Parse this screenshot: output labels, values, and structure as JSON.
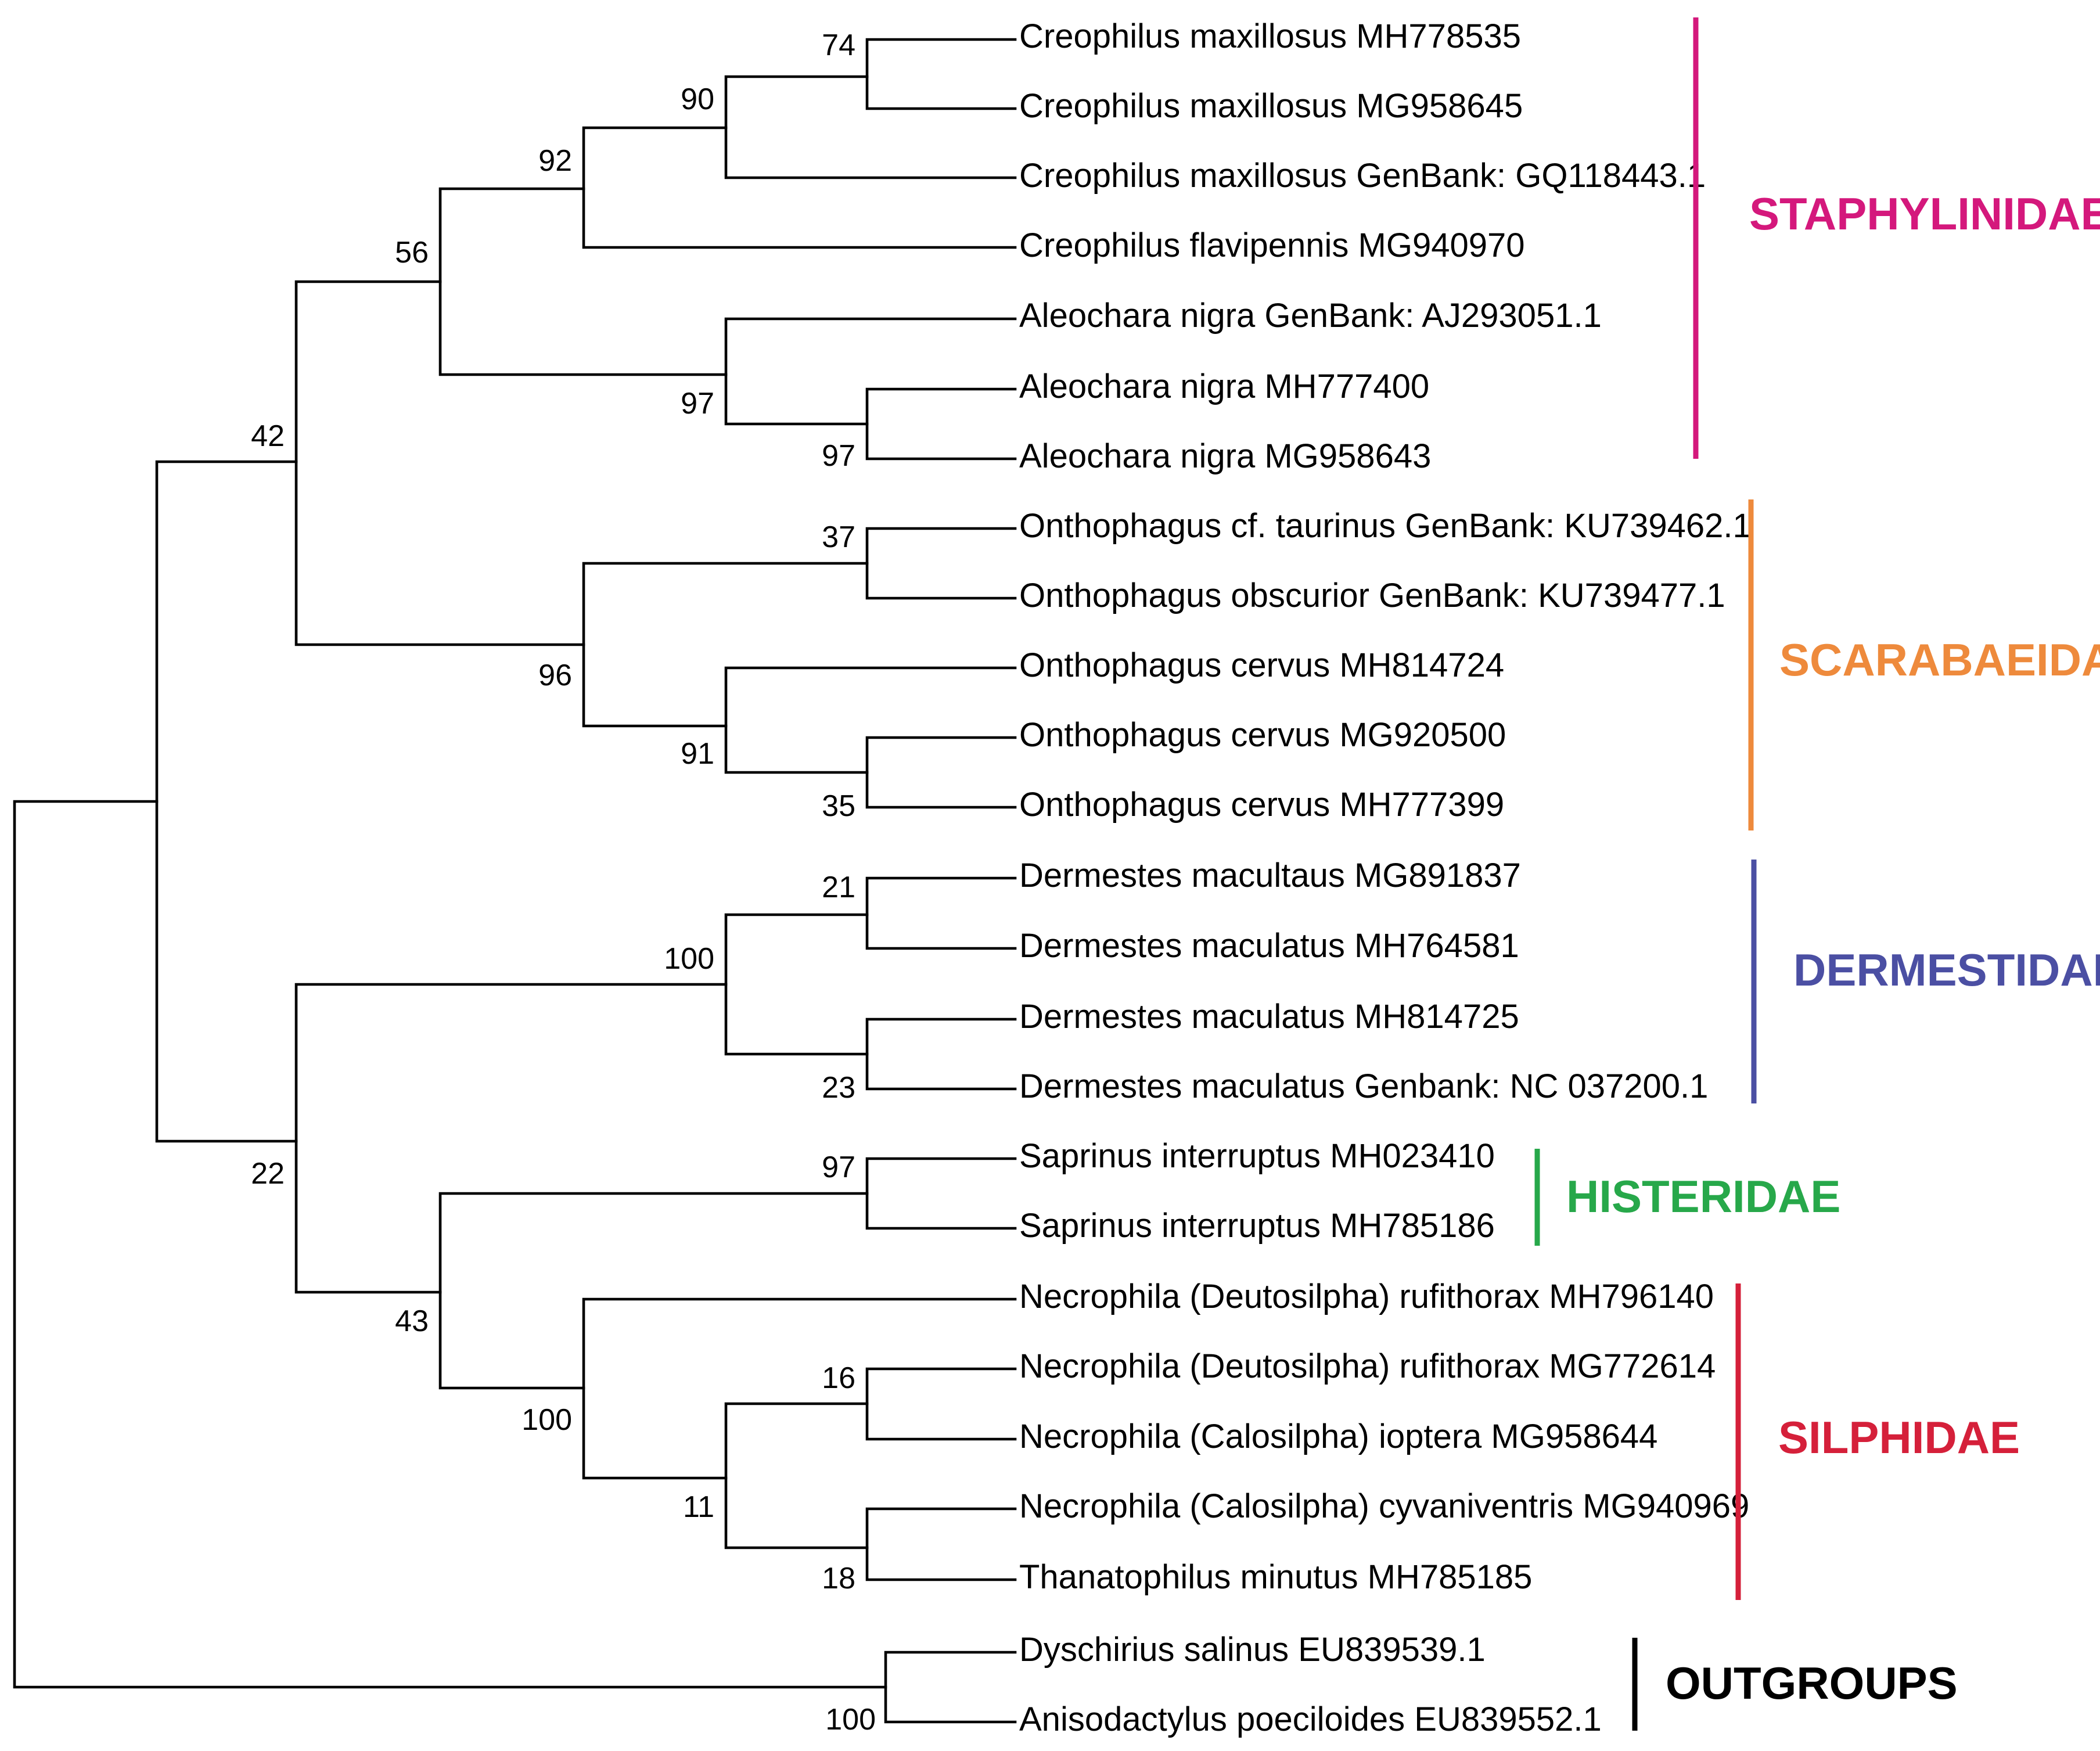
{
  "taxa": [
    "Creophilus maxillosus MH778535",
    "Creophilus maxillosus MG958645",
    "Creophilus maxillosus GenBank: GQ118443.1",
    "Creophilus flavipennis MG940970",
    "Aleochara nigra GenBank: AJ293051.1",
    "Aleochara nigra MH777400",
    "Aleochara nigra MG958643",
    "Onthophagus cf. taurinus GenBank: KU739462.1",
    "Onthophagus obscurior GenBank: KU739477.1",
    "Onthophagus cervus MH814724",
    "Onthophagus cervus MG920500",
    "Onthophagus cervus MH777399",
    "Dermestes macultaus MG891837",
    "Dermestes maculatus MH764581",
    "Dermestes maculatus MH814725",
    "Dermestes maculatus Genbank: NC 037200.1",
    "Saprinus interruptus MH023410",
    "Saprinus interruptus MH785186",
    "Necrophila (Deutosilpha) rufithorax MH796140",
    "Necrophila (Deutosilpha) rufithorax MG772614",
    "Necrophila (Calosilpha) ioptera MG958644",
    "Necrophila (Calosilpha) cyvaniventris MG940969",
    "Thanatophilus minutus MH785185",
    "Dyschirius salinus EU839539.1",
    "Anisodactylus poeciloides EU839552.1"
  ],
  "support_values": {
    "n74": "74",
    "n90": "90",
    "n92": "92",
    "n56": "56",
    "n97a": "97",
    "n97b": "97",
    "n42": "42",
    "n37": "37",
    "n96": "96",
    "n91": "91",
    "n35": "35",
    "n21": "21",
    "n100d": "100",
    "n23": "23",
    "n22": "22",
    "n97h": "97",
    "n43": "43",
    "n100s": "100",
    "n16": "16",
    "n11": "11",
    "n18": "18",
    "n100o": "100"
  },
  "families": [
    {
      "name": "STAPHYLINIDAE",
      "color": "#d4187c"
    },
    {
      "name": "SCARABAEIDAE",
      "color": "#ee8a3c"
    },
    {
      "name": "DERMESTIDAE",
      "color": "#4b4fa3"
    },
    {
      "name": "HISTERIDAE",
      "color": "#27a84a"
    },
    {
      "name": "SILPHIDAE",
      "color": "#d5203a"
    },
    {
      "name": "OUTGROUPS",
      "color": "#000000"
    }
  ]
}
